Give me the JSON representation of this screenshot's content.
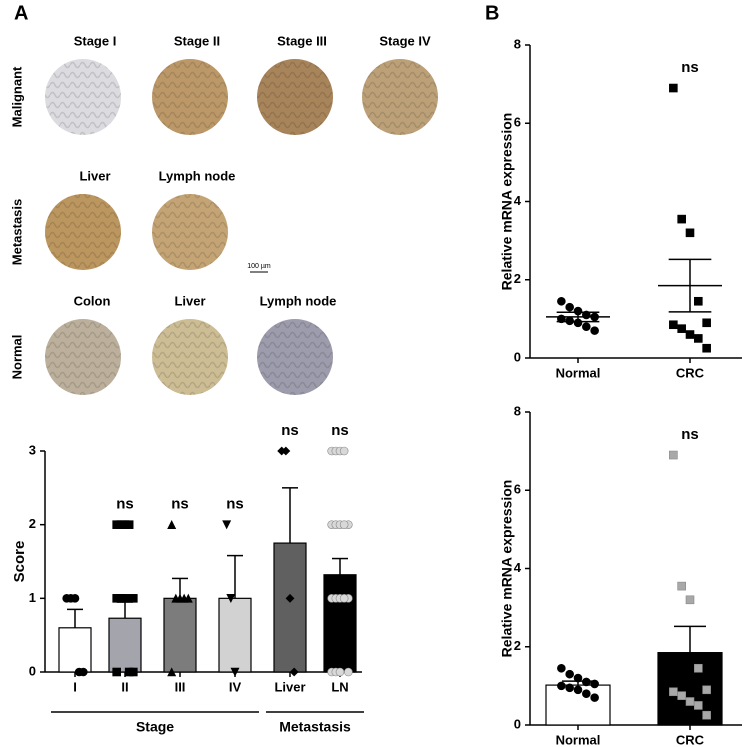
{
  "figure": {
    "panel_labels": [
      "A",
      "B"
    ],
    "rows": [
      {
        "label": "Malignant",
        "images": [
          "Stage I",
          "Stage II",
          "Stage III",
          "Stage IV"
        ]
      },
      {
        "label": "Metastasis",
        "images": [
          "Liver",
          "Lymph node"
        ]
      },
      {
        "label": "Normal",
        "images": [
          "Colon",
          "Liver",
          "Lymph node"
        ]
      }
    ],
    "scale_bar": "100 µm"
  },
  "chart_data": [
    {
      "type": "bar",
      "ylabel": "Score",
      "categories": [
        "I",
        "II",
        "III",
        "IV",
        "Liver",
        "LN"
      ],
      "values": [
        0.6,
        0.73,
        1.0,
        1.0,
        1.75,
        1.32
      ],
      "errors": [
        0.25,
        0.22,
        0.27,
        0.58,
        0.75,
        0.22
      ],
      "colors": [
        "#ffffff",
        "#a4a4ac",
        "#7c7c7c",
        "#d2d2d2",
        "#606060",
        "#000000"
      ],
      "point_colors": [
        "#000000",
        "#000000",
        "#000000",
        "#000000",
        "#000000",
        "#d8d8d8"
      ],
      "markers": [
        "circle",
        "square",
        "triangle",
        "triangle-down",
        "diamond",
        "circle"
      ],
      "points": [
        [
          1,
          1,
          1,
          0,
          0
        ],
        [
          2,
          2,
          2,
          2,
          1,
          1,
          1,
          1,
          0,
          0,
          0
        ],
        [
          2,
          1,
          1,
          1,
          1,
          0
        ],
        [
          2,
          1,
          0
        ],
        [
          3,
          3,
          1,
          0
        ],
        [
          3,
          3,
          3,
          3,
          2,
          2,
          2,
          2,
          2,
          1,
          1,
          1,
          1,
          1,
          0,
          0,
          0,
          0
        ]
      ],
      "annotations": [
        null,
        "ns",
        "ns",
        "ns",
        "ns",
        "ns"
      ],
      "groups": [
        {
          "label": "Stage",
          "span": [
            0,
            3
          ]
        },
        {
          "label": "Metastasis",
          "span": [
            4,
            5
          ]
        }
      ],
      "ylim": [
        0,
        3
      ],
      "yticks": [
        0,
        1,
        2,
        3
      ]
    },
    {
      "type": "dot",
      "ylabel": "Relative mRNA expression",
      "categories": [
        "Normal",
        "CRC"
      ],
      "values": [
        1.05,
        1.85
      ],
      "errors": [
        0.12,
        0.67
      ],
      "point_colors": [
        "#000000",
        "#000000"
      ],
      "markers": [
        "circle",
        "square"
      ],
      "points": [
        [
          1.45,
          1.3,
          1.2,
          1.1,
          1.05,
          1.0,
          0.95,
          0.9,
          0.8,
          0.7
        ],
        [
          6.9,
          3.55,
          3.2,
          1.45,
          0.9,
          0.85,
          0.75,
          0.6,
          0.5,
          0.25
        ]
      ],
      "annotations": [
        null,
        "ns"
      ],
      "ylim": [
        0,
        8
      ],
      "yticks": [
        0,
        2,
        4,
        6,
        8
      ]
    },
    {
      "type": "bar",
      "ylabel": "Relative mRNA expression",
      "categories": [
        "Normal",
        "CRC"
      ],
      "values": [
        1.02,
        1.85
      ],
      "errors": [
        0.1,
        0.67
      ],
      "colors": [
        "#ffffff",
        "#000000"
      ],
      "point_colors": [
        "#000000",
        "#a8a8a8"
      ],
      "markers": [
        "circle",
        "square"
      ],
      "points": [
        [
          1.45,
          1.3,
          1.2,
          1.1,
          1.05,
          1.0,
          0.95,
          0.9,
          0.8,
          0.7
        ],
        [
          6.9,
          3.55,
          3.2,
          1.45,
          0.9,
          0.85,
          0.75,
          0.6,
          0.5,
          0.25
        ]
      ],
      "annotations": [
        null,
        "ns"
      ],
      "ylim": [
        0,
        8
      ],
      "yticks": [
        0,
        2,
        4,
        6,
        8
      ]
    }
  ]
}
